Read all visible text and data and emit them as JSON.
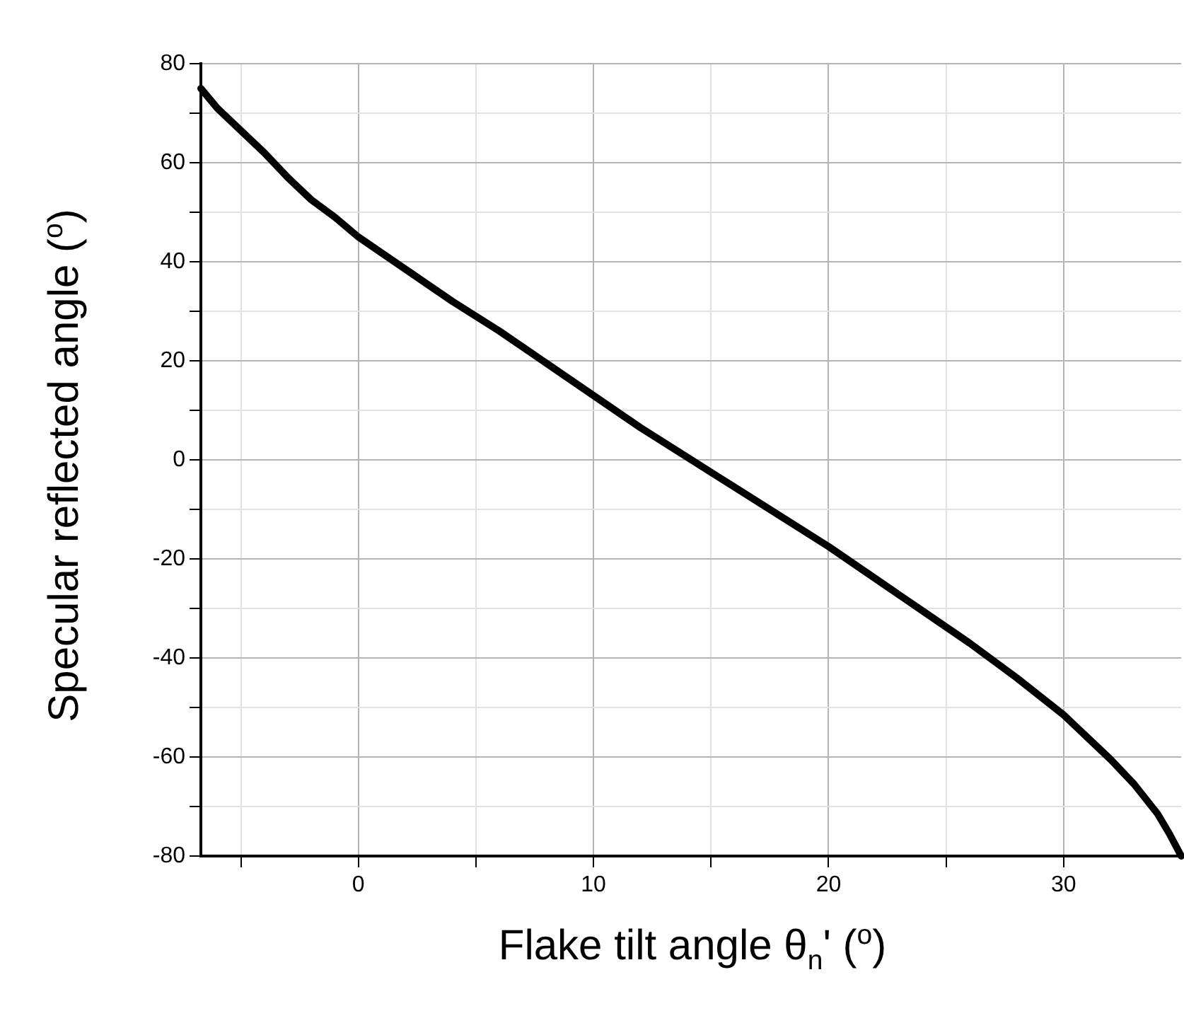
{
  "chart_data": {
    "type": "line",
    "xlabel": "Flake tilt angle θ$_{n}$' ($^{o}$)",
    "ylabel": "Specular reflected angle ($^{o}$)",
    "xlim": [
      -6.7,
      35
    ],
    "ylim": [
      -80,
      80
    ],
    "xticks": [
      {
        "value": -5,
        "label": null
      },
      0,
      {
        "value": 5,
        "label": null
      },
      10,
      {
        "value": 15,
        "label": null
      },
      20,
      {
        "value": 25,
        "label": null
      },
      30
    ],
    "yticks": [
      -80,
      {
        "value": -70,
        "label": null
      },
      -60,
      {
        "value": -50,
        "label": null
      },
      -40,
      {
        "value": -30,
        "label": null
      },
      -20,
      {
        "value": -10,
        "label": null
      },
      0,
      {
        "value": 10,
        "label": null
      },
      20,
      {
        "value": 30,
        "label": null
      },
      40,
      {
        "value": 50,
        "label": null
      },
      60,
      {
        "value": 70,
        "label": null
      },
      80
    ],
    "grid": true,
    "marker": "none",
    "line_style": "solid",
    "series": [
      {
        "color": "#000000",
        "x": [
          -6.7,
          -6,
          -5,
          -4,
          -3,
          -2,
          -1,
          0,
          2,
          4,
          6,
          8,
          10,
          12,
          14,
          16,
          18,
          20,
          22,
          24,
          26,
          28,
          30,
          31,
          32,
          33,
          34,
          34.5,
          35
        ],
        "values": [
          75,
          71,
          66.5,
          62,
          57,
          52.5,
          49,
          45,
          38.5,
          32,
          26,
          19.5,
          13,
          6.5,
          0.5,
          -5.5,
          -11.5,
          -17.5,
          -24,
          -30.5,
          -37,
          -44,
          -51.5,
          -56,
          -60.5,
          -65.5,
          -71.5,
          -75.5,
          -80
        ]
      }
    ]
  }
}
